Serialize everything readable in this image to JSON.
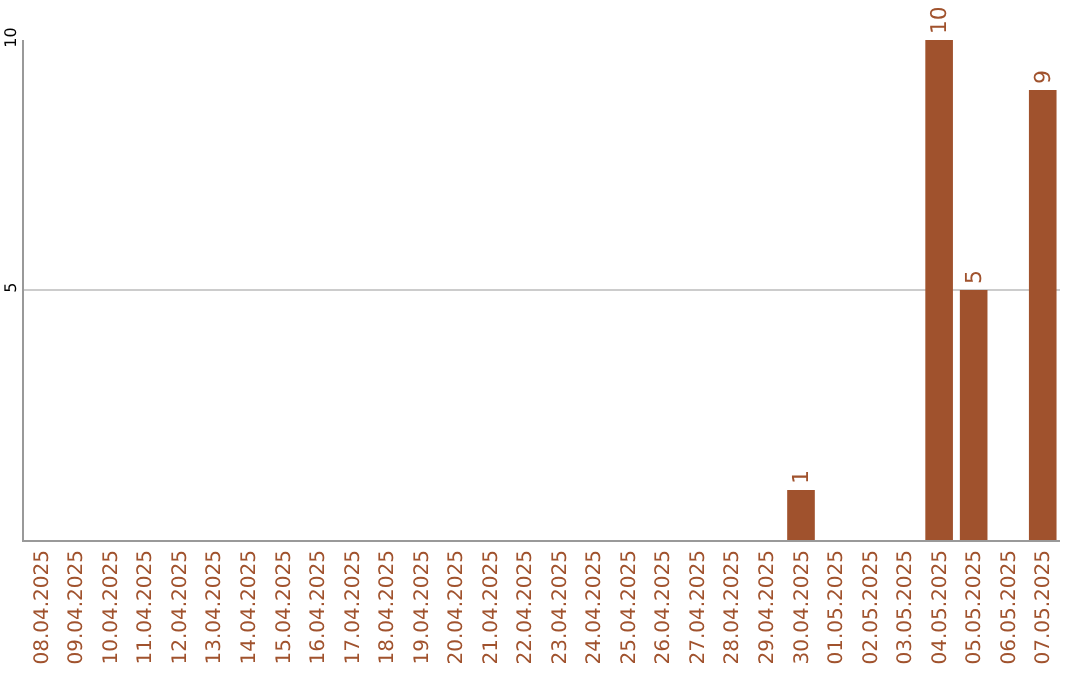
{
  "chart_data": {
    "type": "bar",
    "categories": [
      "08.04.2025",
      "09.04.2025",
      "10.04.2025",
      "11.04.2025",
      "12.04.2025",
      "13.04.2025",
      "14.04.2025",
      "15.04.2025",
      "16.04.2025",
      "17.04.2025",
      "18.04.2025",
      "19.04.2025",
      "20.04.2025",
      "21.04.2025",
      "22.04.2025",
      "23.04.2025",
      "24.04.2025",
      "25.04.2025",
      "26.04.2025",
      "27.04.2025",
      "28.04.2025",
      "29.04.2025",
      "30.04.2025",
      "01.05.2025",
      "02.05.2025",
      "03.05.2025",
      "04.05.2025",
      "05.05.2025",
      "06.05.2025",
      "07.05.2025"
    ],
    "values": [
      0,
      0,
      0,
      0,
      0,
      0,
      0,
      0,
      0,
      0,
      0,
      0,
      0,
      0,
      0,
      0,
      0,
      0,
      0,
      0,
      0,
      0,
      1,
      0,
      0,
      0,
      10,
      5,
      0,
      9
    ],
    "value_labels": [
      null,
      null,
      null,
      null,
      null,
      null,
      null,
      null,
      null,
      null,
      null,
      null,
      null,
      null,
      null,
      null,
      null,
      null,
      null,
      null,
      null,
      null,
      "1",
      null,
      null,
      null,
      "10",
      "5",
      null,
      "9"
    ],
    "color": "#a0522d",
    "ylim": [
      0,
      10
    ],
    "yticks": [
      5,
      10
    ],
    "grid": "y",
    "legend": false
  }
}
